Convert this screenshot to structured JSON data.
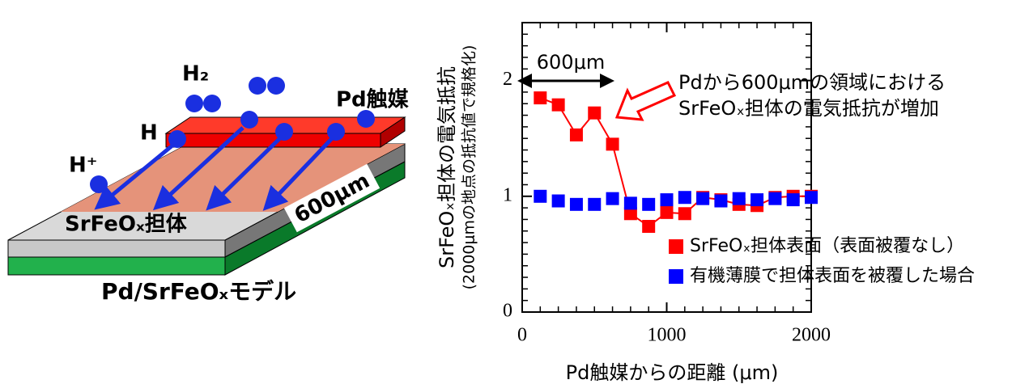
{
  "diagram": {
    "h2": "H₂",
    "h_plus": "H⁺",
    "h": "H",
    "catalyst": "Pd触媒",
    "support": "SrFeOₓ担体",
    "width": "600μm",
    "model": "Pd/SrFeOₓモデル"
  },
  "chart_data": {
    "type": "line",
    "xlabel": "Pd触媒からの距離 (μm)",
    "ylabel": "SrFeOₓ担体の電気抵抗",
    "ylabel_note": "(2000μmの地点の抵抗値で規格化)",
    "annotations": [
      "600μm",
      "Pdから600μmの領域における",
      "SrFeOₓ担体の電気抵抗が増加"
    ],
    "x": [
      125,
      250,
      375,
      500,
      625,
      750,
      875,
      1000,
      1125,
      1250,
      1375,
      1500,
      1625,
      1750,
      1875,
      2000
    ],
    "series": [
      {
        "name": "SrFeOₓ担体表面（表面被覆なし）",
        "color": "#ff0000",
        "line": true,
        "values": [
          1.85,
          1.79,
          1.53,
          1.72,
          1.45,
          0.85,
          0.74,
          0.86,
          0.85,
          0.99,
          0.97,
          0.93,
          0.92,
          0.99,
          1.0,
          1.0
        ]
      },
      {
        "name": "有機薄膜で担体表面を被覆した場合",
        "color": "#0000ff",
        "line": false,
        "values": [
          1.0,
          0.96,
          0.93,
          0.93,
          0.98,
          0.94,
          0.93,
          0.97,
          0.99,
          0.98,
          0.96,
          0.98,
          0.97,
          0.98,
          0.97,
          0.99
        ]
      }
    ],
    "xlim": [
      0,
      2000
    ],
    "ylim": [
      0,
      2.5
    ],
    "xticks": [
      0,
      1000,
      2000
    ],
    "yticks": [
      0,
      1,
      2
    ],
    "xminorticks": [
      125,
      250,
      375,
      500,
      625,
      750,
      875,
      1125,
      1250,
      1375,
      1500,
      1625,
      1750,
      1875
    ],
    "yminorticks": [
      0.1,
      0.2,
      0.3,
      0.4,
      0.5,
      0.6,
      0.7,
      0.8,
      0.9,
      1.1,
      1.2,
      1.3,
      1.4,
      1.5,
      1.6,
      1.7,
      1.8,
      1.9,
      2.1,
      2.2,
      2.3,
      2.4
    ]
  }
}
